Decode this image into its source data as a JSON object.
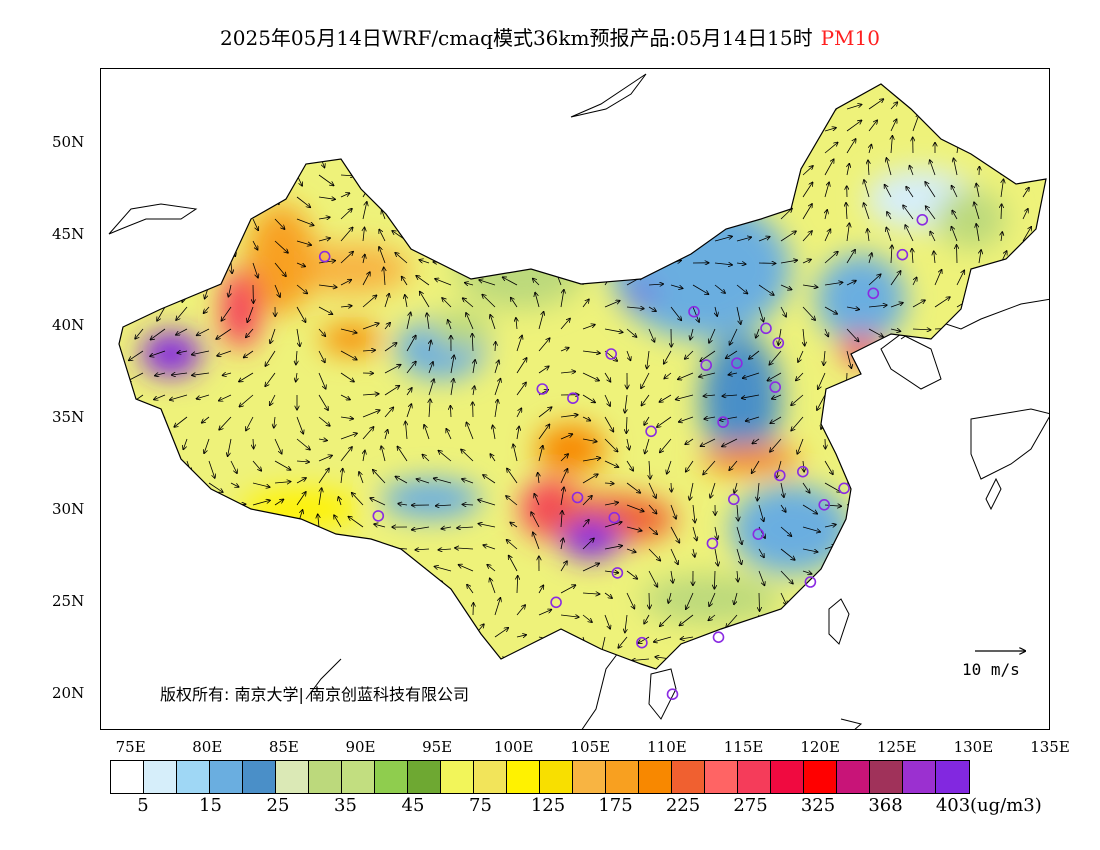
{
  "title": {
    "text": "2025年05月14日WRF/cmaq模式36km预报产品:05月14日15时",
    "pollutant": "PM10",
    "pollutant_color": "#ff2020"
  },
  "map": {
    "lon_range": [
      73,
      135
    ],
    "lat_range": [
      18,
      54
    ],
    "lon_labels": [
      "75E",
      "80E",
      "85E",
      "90E",
      "95E",
      "100E",
      "105E",
      "110E",
      "115E",
      "120E",
      "125E",
      "130E",
      "135E"
    ],
    "lat_labels": [
      "20N",
      "25N",
      "30N",
      "35N",
      "40N",
      "45N",
      "50N"
    ],
    "copyright": "版权所有: 南京大学| 南京创蓝科技有限公司",
    "wind_scale_label": "10 m/s",
    "stations": [
      {
        "lon": 87.6,
        "lat": 43.8
      },
      {
        "lon": 91.1,
        "lat": 29.7
      },
      {
        "lon": 101.8,
        "lat": 36.6
      },
      {
        "lon": 103.8,
        "lat": 36.1
      },
      {
        "lon": 106.3,
        "lat": 38.5
      },
      {
        "lon": 111.7,
        "lat": 40.8
      },
      {
        "lon": 112.5,
        "lat": 37.9
      },
      {
        "lon": 114.5,
        "lat": 38.0
      },
      {
        "lon": 116.4,
        "lat": 39.9
      },
      {
        "lon": 117.2,
        "lat": 39.1
      },
      {
        "lon": 117.0,
        "lat": 36.7
      },
      {
        "lon": 113.6,
        "lat": 34.8
      },
      {
        "lon": 108.9,
        "lat": 34.3
      },
      {
        "lon": 104.1,
        "lat": 30.7
      },
      {
        "lon": 106.5,
        "lat": 29.6
      },
      {
        "lon": 114.3,
        "lat": 30.6
      },
      {
        "lon": 117.3,
        "lat": 31.9
      },
      {
        "lon": 118.8,
        "lat": 32.1
      },
      {
        "lon": 120.2,
        "lat": 30.3
      },
      {
        "lon": 121.5,
        "lat": 31.2
      },
      {
        "lon": 112.9,
        "lat": 28.2
      },
      {
        "lon": 115.9,
        "lat": 28.7
      },
      {
        "lon": 119.3,
        "lat": 26.1
      },
      {
        "lon": 113.3,
        "lat": 23.1
      },
      {
        "lon": 108.3,
        "lat": 22.8
      },
      {
        "lon": 106.7,
        "lat": 26.6
      },
      {
        "lon": 102.7,
        "lat": 25.0
      },
      {
        "lon": 110.3,
        "lat": 20.0
      },
      {
        "lon": 123.4,
        "lat": 41.8
      },
      {
        "lon": 125.3,
        "lat": 43.9
      },
      {
        "lon": 126.6,
        "lat": 45.8
      }
    ]
  },
  "legend": {
    "colors": [
      "#ffffff",
      "#d6eefa",
      "#9fd7f5",
      "#6aaee0",
      "#4a8fc8",
      "#dbe9b6",
      "#bcd97c",
      "#c2de80",
      "#8fcd4e",
      "#6ea832",
      "#f2f55a",
      "#f2e45a",
      "#fff200",
      "#f8df00",
      "#f8b442",
      "#f8a020",
      "#f88800",
      "#f06030",
      "#ff6464",
      "#f53c5a",
      "#f00a40",
      "#ff0000",
      "#c81478",
      "#a0325a",
      "#9b30d0",
      "#8228e0"
    ],
    "tick_labels": [
      "5",
      "15",
      "25",
      "35",
      "45",
      "75",
      "125",
      "175",
      "225",
      "275",
      "325",
      "368",
      "403"
    ],
    "unit": "(ug/m3)"
  }
}
